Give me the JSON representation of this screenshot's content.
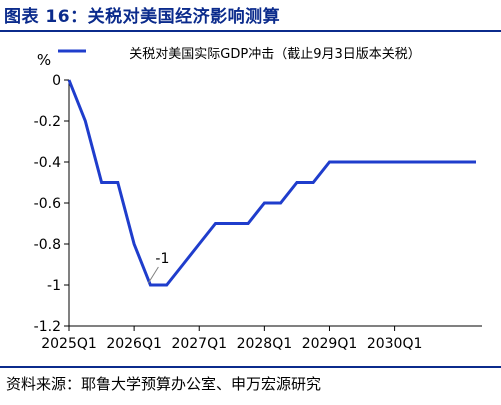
{
  "figure_title": "图表 16：关税对美国经济影响测算",
  "source_note": "资料来源：耶鲁大学预算办公室、申万宏源研究",
  "colors": {
    "title": "#0b2b8c",
    "line": "#1f3dcc",
    "axis": "#000000"
  },
  "chart_data": {
    "type": "line",
    "title": "",
    "xlabel": "",
    "ylabel": "%",
    "ylim": [
      -1.2,
      0
    ],
    "yticks": [
      0,
      -0.2,
      -0.4,
      -0.6,
      -0.8,
      -1,
      -1.2
    ],
    "ytick_labels": [
      "0",
      "-0.2",
      "-0.4",
      "-0.6",
      "-0.8",
      "-1",
      "-1.2"
    ],
    "categories": [
      "2025Q1",
      "2025Q2",
      "2025Q3",
      "2025Q4",
      "2026Q1",
      "2026Q2",
      "2026Q3",
      "2026Q4",
      "2027Q1",
      "2027Q2",
      "2027Q3",
      "2027Q4",
      "2028Q1",
      "2028Q2",
      "2028Q3",
      "2028Q4",
      "2029Q1",
      "2029Q2",
      "2029Q3",
      "2029Q4",
      "2030Q1",
      "2030Q2",
      "2030Q3",
      "2030Q4",
      "2031Q1",
      "2031Q2"
    ],
    "xtick_labels": [
      "2025Q1",
      "2026Q1",
      "2027Q1",
      "2028Q1",
      "2029Q1",
      "2030Q1"
    ],
    "grid": false,
    "legend": "top-center",
    "series": [
      {
        "name": "关税对美国实际GDP冲击（截止9月3日版本关税）",
        "values": [
          0,
          -0.2,
          -0.5,
          -0.5,
          -0.8,
          -1,
          -1,
          -0.9,
          -0.8,
          -0.7,
          -0.7,
          -0.7,
          -0.6,
          -0.6,
          -0.5,
          -0.5,
          -0.4,
          -0.4,
          -0.4,
          -0.4,
          -0.4,
          -0.4,
          -0.4,
          -0.4,
          -0.4,
          -0.4
        ]
      }
    ],
    "annotations": [
      {
        "text": "-1",
        "category": "2026Q2",
        "value": -1
      }
    ]
  }
}
